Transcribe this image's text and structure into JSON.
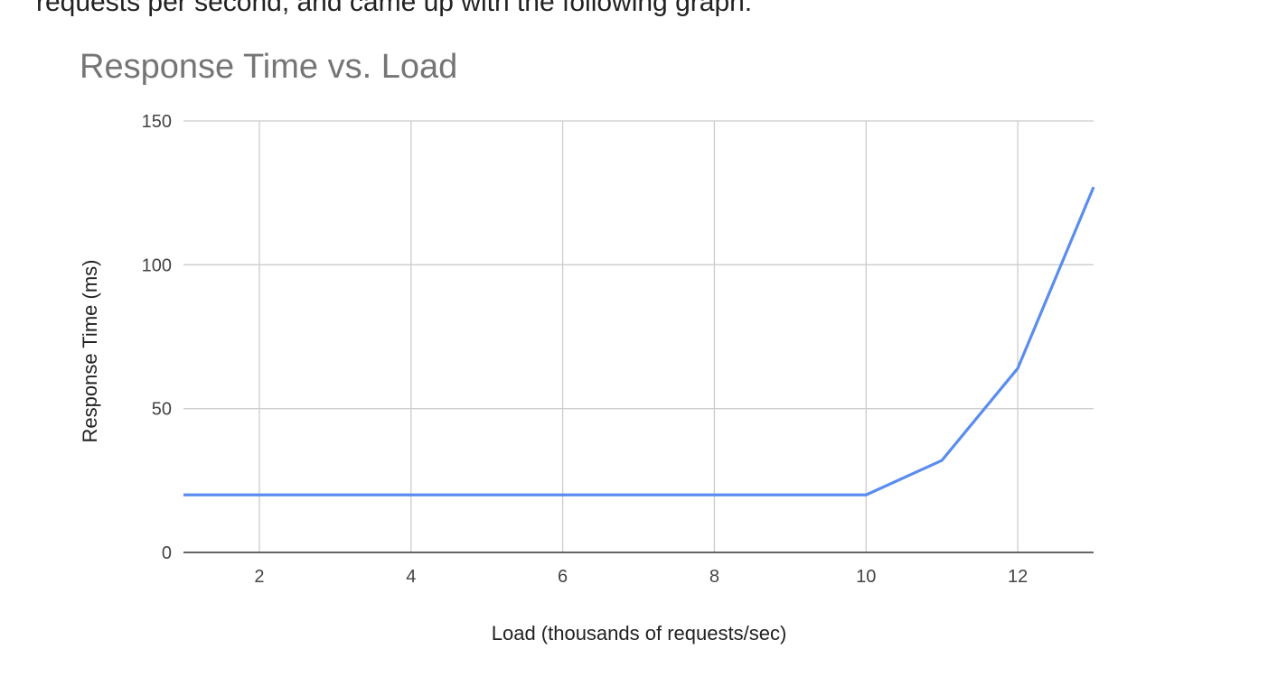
{
  "page": {
    "intro_fragment": "requests per second, and came up with the following graph:"
  },
  "chart_data": {
    "type": "line",
    "title": "Response Time vs. Load",
    "xlabel": "Load (thousands of requests/sec)",
    "ylabel": "Response Time (ms)",
    "xlim": [
      1,
      13
    ],
    "ylim": [
      0,
      150
    ],
    "xticks": [
      2,
      4,
      6,
      8,
      10,
      12
    ],
    "yticks": [
      0,
      50,
      100,
      150
    ],
    "grid": true,
    "legend": "none",
    "series": [
      {
        "color": "#5b8def",
        "x": [
          1,
          2,
          3,
          4,
          5,
          6,
          7,
          8,
          9,
          10,
          11,
          12,
          13
        ],
        "y": [
          20,
          20,
          20,
          20,
          20,
          20,
          20,
          20,
          20,
          20,
          32,
          64,
          127
        ]
      }
    ]
  }
}
